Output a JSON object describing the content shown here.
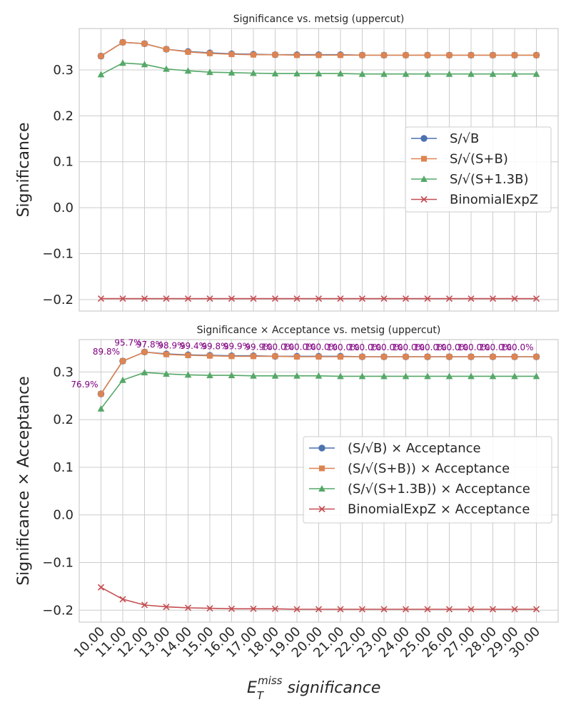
{
  "chart_data": [
    {
      "type": "line",
      "title": "Significance vs. metsig (uppercut)",
      "ylabel": "Significance",
      "xlabel": "",
      "x": [
        10,
        11,
        12,
        13,
        14,
        15,
        16,
        17,
        18,
        19,
        20,
        21,
        22,
        23,
        24,
        25,
        26,
        27,
        28,
        29,
        30
      ],
      "ylim": [
        -0.225,
        0.39
      ],
      "yticks": [
        -0.2,
        -0.1,
        0.0,
        0.1,
        0.2,
        0.3
      ],
      "ytick_labels": [
        "−0.2",
        "−0.1",
        "0.0",
        "0.1",
        "0.2",
        "0.3"
      ],
      "grid": true,
      "legend_position": "center-right",
      "series": [
        {
          "name": "S/√B",
          "color": "#4c72b0",
          "marker": "circle",
          "values": [
            0.33,
            0.36,
            0.357,
            0.345,
            0.34,
            0.337,
            0.335,
            0.334,
            0.333,
            0.333,
            0.333,
            0.333,
            0.332,
            0.332,
            0.332,
            0.332,
            0.332,
            0.332,
            0.332,
            0.332,
            0.332
          ]
        },
        {
          "name": "S/√(S+B)",
          "color": "#dd8452",
          "marker": "square",
          "values": [
            0.33,
            0.36,
            0.357,
            0.345,
            0.339,
            0.336,
            0.334,
            0.333,
            0.333,
            0.332,
            0.332,
            0.332,
            0.332,
            0.332,
            0.332,
            0.332,
            0.332,
            0.332,
            0.332,
            0.332,
            0.332
          ]
        },
        {
          "name": "S/√(S+1.3B)",
          "color": "#55a868",
          "marker": "triangle",
          "values": [
            0.29,
            0.315,
            0.312,
            0.302,
            0.298,
            0.295,
            0.294,
            0.293,
            0.292,
            0.292,
            0.292,
            0.292,
            0.291,
            0.291,
            0.291,
            0.291,
            0.291,
            0.291,
            0.291,
            0.291,
            0.291
          ]
        },
        {
          "name": "BinomialExpZ",
          "color": "#c44e52",
          "marker": "x",
          "values": [
            -0.198,
            -0.198,
            -0.198,
            -0.198,
            -0.198,
            -0.198,
            -0.198,
            -0.198,
            -0.198,
            -0.198,
            -0.198,
            -0.198,
            -0.198,
            -0.198,
            -0.198,
            -0.198,
            -0.198,
            -0.198,
            -0.198,
            -0.198,
            -0.198
          ]
        }
      ]
    },
    {
      "type": "line",
      "title": "Significance × Acceptance vs. metsig (uppercut)",
      "ylabel": "Significance × Acceptance",
      "xlabel": "E_T^miss significance",
      "xlabel_main": "E",
      "xlabel_sub": "T",
      "xlabel_sup": "miss",
      "xlabel_rest": " significance",
      "x": [
        10,
        11,
        12,
        13,
        14,
        15,
        16,
        17,
        18,
        19,
        20,
        21,
        22,
        23,
        24,
        25,
        26,
        27,
        28,
        29,
        30
      ],
      "xtick_labels": [
        "10.00",
        "11.00",
        "12.00",
        "13.00",
        "14.00",
        "15.00",
        "16.00",
        "17.00",
        "18.00",
        "19.00",
        "20.00",
        "21.00",
        "22.00",
        "23.00",
        "24.00",
        "25.00",
        "26.00",
        "27.00",
        "28.00",
        "29.00",
        "30.00"
      ],
      "ylim": [
        -0.225,
        0.368
      ],
      "yticks": [
        -0.2,
        -0.1,
        0.0,
        0.1,
        0.2,
        0.3
      ],
      "ytick_labels": [
        "−0.2",
        "−0.1",
        "0.0",
        "0.1",
        "0.2",
        "0.3"
      ],
      "grid": true,
      "legend_position": "center-right",
      "acceptance_labels": [
        "76.9%",
        "89.8%",
        "95.7%",
        "97.8%",
        "98.9%",
        "99.4%",
        "99.8%",
        "99.9%",
        "99.9%",
        "100.0%",
        "100.0%",
        "100.0%",
        "100.0%",
        "100.0%",
        "100.0%",
        "100.0%",
        "100.0%",
        "100.0%",
        "100.0%",
        "100.0%",
        "100.0%"
      ],
      "acceptance_label_color": "#800080",
      "series": [
        {
          "name": "(S/√B) × Acceptance",
          "color": "#4c72b0",
          "marker": "circle",
          "values": [
            0.254,
            0.323,
            0.342,
            0.338,
            0.336,
            0.335,
            0.334,
            0.334,
            0.333,
            0.333,
            0.333,
            0.333,
            0.332,
            0.332,
            0.332,
            0.332,
            0.332,
            0.332,
            0.332,
            0.332,
            0.332
          ]
        },
        {
          "name": "(S/√(S+B)) × Acceptance",
          "color": "#dd8452",
          "marker": "square",
          "values": [
            0.254,
            0.323,
            0.342,
            0.337,
            0.335,
            0.334,
            0.333,
            0.333,
            0.333,
            0.332,
            0.332,
            0.332,
            0.332,
            0.332,
            0.332,
            0.332,
            0.332,
            0.332,
            0.332,
            0.332,
            0.332
          ]
        },
        {
          "name": "(S/√(S+1.3B)) × Acceptance",
          "color": "#55a868",
          "marker": "triangle",
          "values": [
            0.223,
            0.283,
            0.299,
            0.296,
            0.294,
            0.293,
            0.293,
            0.292,
            0.292,
            0.292,
            0.292,
            0.291,
            0.291,
            0.291,
            0.291,
            0.291,
            0.291,
            0.291,
            0.291,
            0.291,
            0.291
          ]
        },
        {
          "name": "BinomialExpZ × Acceptance",
          "color": "#c44e52",
          "marker": "x",
          "values": [
            -0.152,
            -0.177,
            -0.189,
            -0.193,
            -0.195,
            -0.196,
            -0.197,
            -0.197,
            -0.197,
            -0.198,
            -0.198,
            -0.198,
            -0.198,
            -0.198,
            -0.198,
            -0.198,
            -0.198,
            -0.198,
            -0.198,
            -0.198,
            -0.198
          ]
        }
      ]
    }
  ]
}
